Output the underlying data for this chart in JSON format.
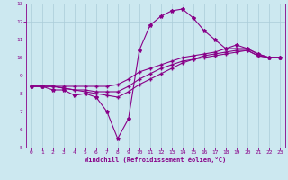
{
  "xlabel": "Windchill (Refroidissement éolien,°C)",
  "background_color": "#cce8f0",
  "grid_color": "#aaccd8",
  "line_color": "#880088",
  "xlim": [
    -0.5,
    23.5
  ],
  "ylim": [
    5,
    13
  ],
  "xticks": [
    0,
    1,
    2,
    3,
    4,
    5,
    6,
    7,
    8,
    9,
    10,
    11,
    12,
    13,
    14,
    15,
    16,
    17,
    18,
    19,
    20,
    21,
    22,
    23
  ],
  "yticks": [
    5,
    6,
    7,
    8,
    9,
    10,
    11,
    12,
    13
  ],
  "line1_x": [
    0,
    1,
    2,
    3,
    4,
    5,
    6,
    7,
    8,
    9,
    10,
    11,
    12,
    13,
    14,
    15,
    16,
    17,
    18,
    19,
    20,
    21,
    22,
    23
  ],
  "line1_y": [
    8.4,
    8.4,
    8.2,
    8.2,
    7.9,
    8.0,
    7.8,
    7.0,
    5.5,
    6.6,
    10.4,
    11.8,
    12.3,
    12.6,
    12.7,
    12.2,
    11.5,
    11.0,
    10.5,
    10.7,
    10.5,
    10.2,
    10.0,
    10.0
  ],
  "line2_x": [
    0,
    1,
    2,
    3,
    4,
    5,
    6,
    7,
    8,
    9,
    10,
    11,
    12,
    13,
    14,
    15,
    16,
    17,
    18,
    19,
    20,
    21,
    22,
    23
  ],
  "line2_y": [
    8.4,
    8.4,
    8.4,
    8.4,
    8.4,
    8.4,
    8.4,
    8.4,
    8.5,
    8.8,
    9.2,
    9.4,
    9.6,
    9.8,
    10.0,
    10.1,
    10.2,
    10.3,
    10.5,
    10.5,
    10.5,
    10.2,
    10.0,
    10.0
  ],
  "line3_x": [
    0,
    1,
    2,
    3,
    4,
    5,
    6,
    7,
    8,
    9,
    10,
    11,
    12,
    13,
    14,
    15,
    16,
    17,
    18,
    19,
    20,
    21,
    22,
    23
  ],
  "line3_y": [
    8.4,
    8.4,
    8.4,
    8.3,
    8.2,
    8.2,
    8.1,
    8.1,
    8.1,
    8.4,
    8.8,
    9.1,
    9.4,
    9.6,
    9.8,
    9.9,
    10.1,
    10.2,
    10.3,
    10.4,
    10.4,
    10.1,
    10.0,
    10.0
  ],
  "line4_x": [
    0,
    1,
    2,
    3,
    4,
    5,
    6,
    7,
    8,
    9,
    10,
    11,
    12,
    13,
    14,
    15,
    16,
    17,
    18,
    19,
    20,
    21,
    22,
    23
  ],
  "line4_y": [
    8.4,
    8.4,
    8.4,
    8.3,
    8.2,
    8.1,
    8.0,
    7.9,
    7.8,
    8.1,
    8.5,
    8.8,
    9.1,
    9.4,
    9.7,
    9.9,
    10.0,
    10.1,
    10.2,
    10.3,
    10.4,
    10.1,
    10.0,
    10.0
  ]
}
